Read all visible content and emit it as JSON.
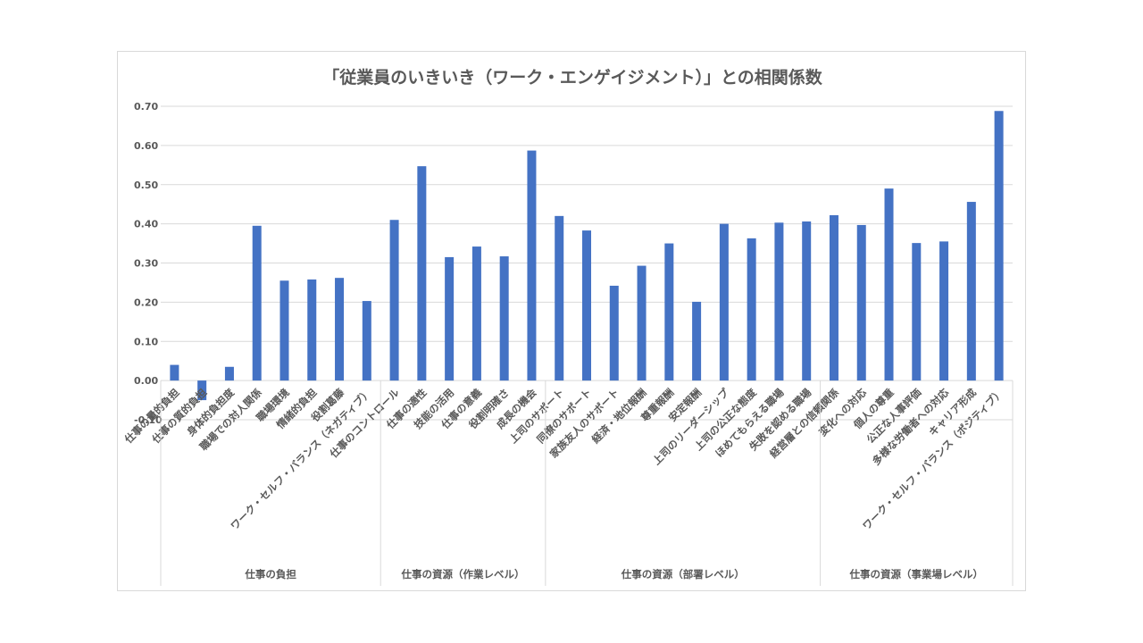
{
  "chart_data": {
    "type": "bar",
    "title": "「従業員のいきいき（ワーク・エンゲイジメント）」との相関係数",
    "xlabel": "",
    "ylabel": "",
    "ylim": [
      -0.1,
      0.7
    ],
    "yticks": [
      "-0.10",
      "0.00",
      "0.10",
      "0.20",
      "0.30",
      "0.40",
      "0.50",
      "0.60",
      "0.70"
    ],
    "grid": true,
    "legend": "none",
    "bar_color": "#4472c4",
    "categories": [
      "仕事の量的負担",
      "仕事の質的負担",
      "身体的負担度",
      "職場での対人関係",
      "職場環境",
      "情緒的負担",
      "役割葛藤",
      "ワーク・セルフ・バランス（ネガティブ）",
      "仕事のコントロール",
      "仕事の適性",
      "技能の活用",
      "仕事の意義",
      "役割明確さ",
      "成長の機会",
      "上司のサポート",
      "同僚のサポート",
      "家族友人のサポート",
      "経済・地位報酬",
      "尊重報酬",
      "安定報酬",
      "上司のリーダーシップ",
      "上司の公正な態度",
      "ほめてもらえる職場",
      "失敗を認める職場",
      "経営層との信頼関係",
      "変化への対応",
      "個人の尊重",
      "公正な人事評価",
      "多様な労働者への対応",
      "キャリア形成",
      "ワーク・セルフ・バランス（ポジティブ）"
    ],
    "values": [
      0.04,
      -0.05,
      0.035,
      0.395,
      0.255,
      0.258,
      0.262,
      0.203,
      0.41,
      0.547,
      0.315,
      0.342,
      0.317,
      0.587,
      0.42,
      0.383,
      0.242,
      0.293,
      0.35,
      0.201,
      0.4,
      0.363,
      0.403,
      0.406,
      0.422,
      0.397,
      0.49,
      0.351,
      0.355,
      0.456,
      0.688
    ],
    "groups": [
      {
        "label": "仕事の負担",
        "count": 8
      },
      {
        "label": "仕事の資源（作業レベル）",
        "count": 6
      },
      {
        "label": "仕事の資源（部署レベル）",
        "count": 10
      },
      {
        "label": "仕事の資源（事業場レベル）",
        "count": 7
      }
    ]
  }
}
